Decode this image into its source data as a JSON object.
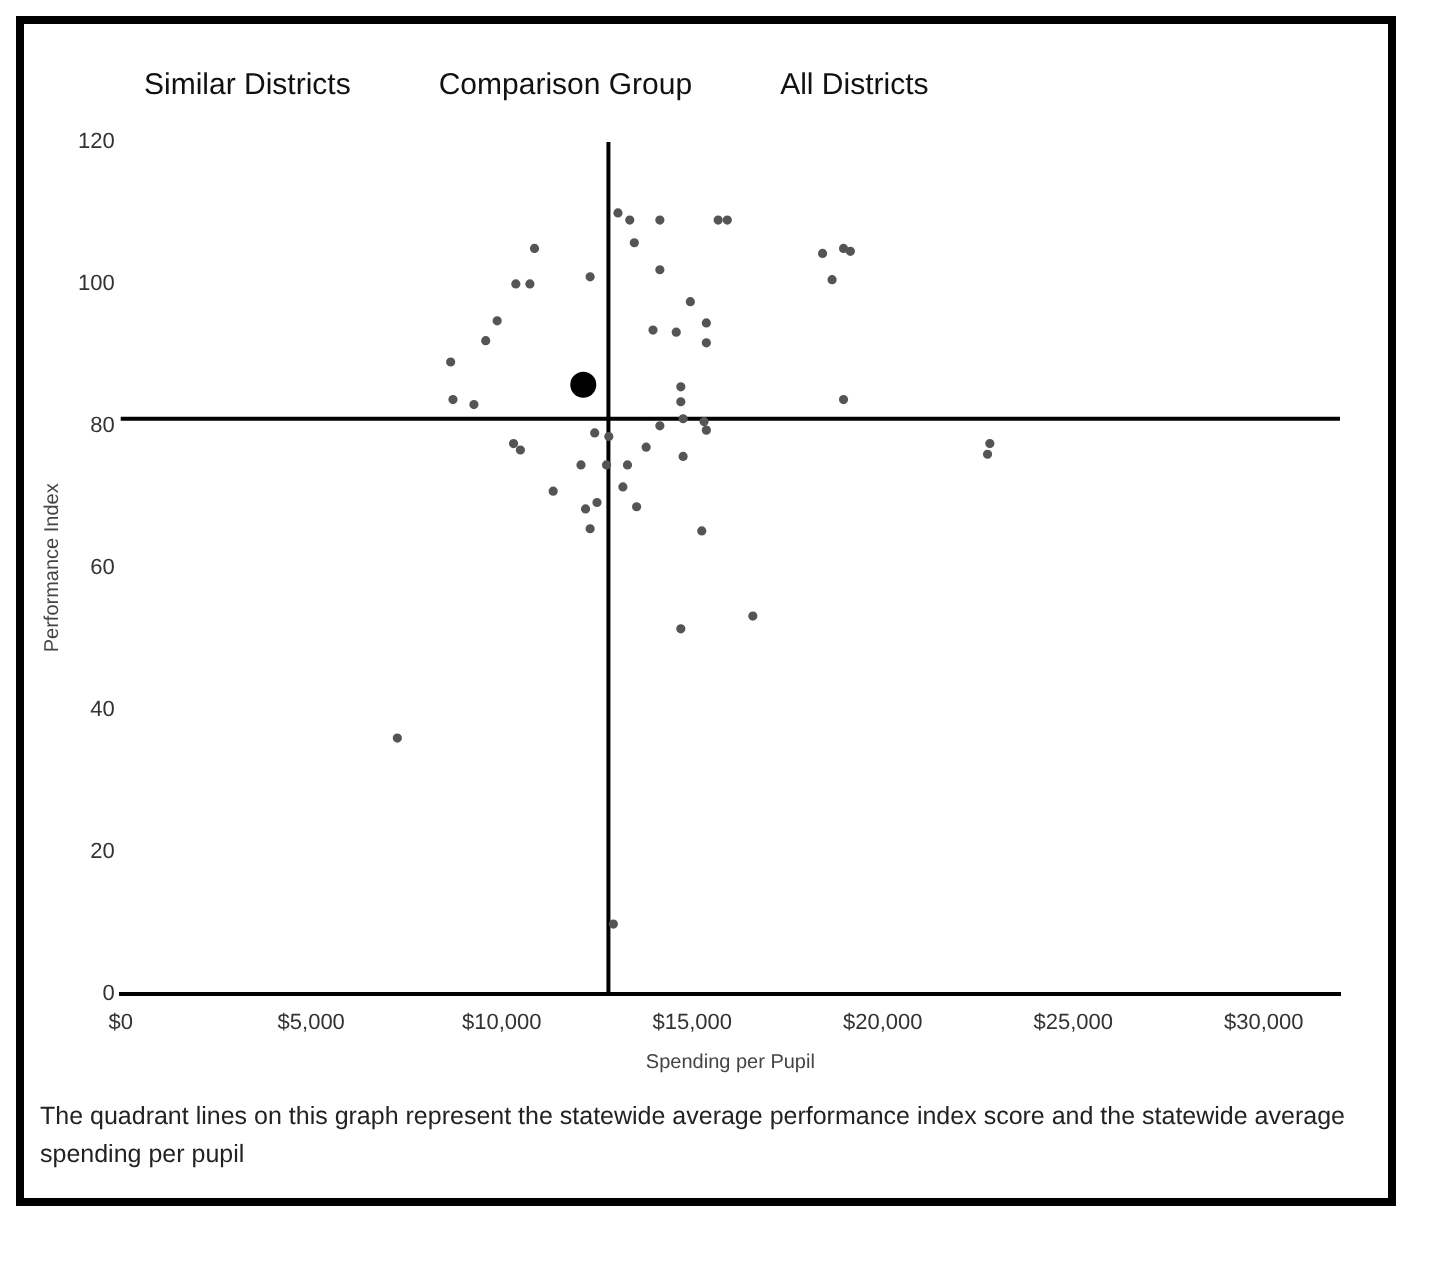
{
  "chart_data": {
    "type": "scatter",
    "xlabel": "Spending per Pupil",
    "ylabel": "Performance Index",
    "annotations": [
      "Similar Districts",
      "Comparison Group",
      "All Districts",
      "The quadrant lines on this graph represent the statewide average performance index score and the statewide average spending per pupil"
    ],
    "xlim": [
      0,
      32000
    ],
    "ylim": [
      0,
      120
    ],
    "xticks": [
      {
        "value": 0,
        "label": "$0"
      },
      {
        "value": 5000,
        "label": "$5,000"
      },
      {
        "value": 10000,
        "label": "$10,000"
      },
      {
        "value": 15000,
        "label": "$15,000"
      },
      {
        "value": 20000,
        "label": "$20,000"
      },
      {
        "value": 25000,
        "label": "$25,000"
      },
      {
        "value": 30000,
        "label": "$30,000"
      }
    ],
    "yticks": [
      0,
      20,
      40,
      60,
      80,
      100,
      120
    ],
    "grid": false,
    "legend": false,
    "marker": "circle",
    "ref_lines": [
      {
        "axis": "x",
        "value": 12800,
        "color": "#000000"
      },
      {
        "axis": "y",
        "value": 81,
        "color": "#000000"
      }
    ],
    "series": [
      {
        "color": "#555555",
        "x": [
          13050,
          13480,
          14150,
          15680,
          14150,
          12320,
          10860,
          10370,
          10740,
          9880,
          9580,
          8660,
          14950,
          13970,
          14580,
          15370,
          15370,
          8720,
          9270,
          14700,
          14700,
          14760,
          15310,
          15370,
          14150,
          10310,
          10490,
          12440,
          12810,
          13790,
          14760,
          12080,
          12750,
          13300,
          11350,
          13180,
          12200,
          12500,
          13540,
          12320,
          15250,
          14700,
          7260,
          13360,
          15920,
          18970,
          18420,
          19150,
          18670,
          18970,
          22810,
          22750,
          16590,
          12930
        ],
        "values": [
          110,
          105.8,
          109,
          109,
          102,
          101,
          105,
          100,
          100,
          94.8,
          92,
          89,
          97.5,
          93.5,
          93.2,
          94.5,
          91.7,
          83.7,
          83,
          85.5,
          83.4,
          81,
          80.6,
          79.4,
          80,
          77.5,
          76.6,
          79,
          78.5,
          77,
          75.7,
          74.5,
          74.5,
          74.5,
          70.8,
          71.4,
          68.3,
          69.2,
          68.6,
          65.5,
          65.2,
          51.4,
          36,
          109,
          109,
          105,
          104.3,
          104.6,
          100.6,
          83.7,
          77.5,
          76,
          53.2,
          9.8
        ]
      },
      {
        "color": "#000000",
        "x": [
          12140
        ],
        "values": [
          85.8
        ]
      }
    ]
  }
}
